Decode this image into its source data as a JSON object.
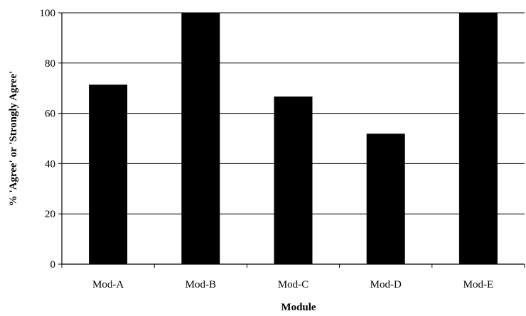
{
  "chart_data": {
    "type": "bar",
    "title": "",
    "xlabel": "Module",
    "ylabel": "% 'Agree' or 'Strongly Agree'",
    "categories": [
      "Mod-A",
      "Mod-B",
      "Mod-C",
      "Mod-D",
      "Mod-E"
    ],
    "values": [
      71.4,
      100,
      66.7,
      51.9,
      100
    ],
    "ylim": [
      0,
      100
    ],
    "yticks": [
      0,
      20,
      40,
      60,
      80,
      100
    ],
    "grid": true,
    "legend": "none",
    "bar_color": "#000000",
    "grid_color": "#000000"
  }
}
